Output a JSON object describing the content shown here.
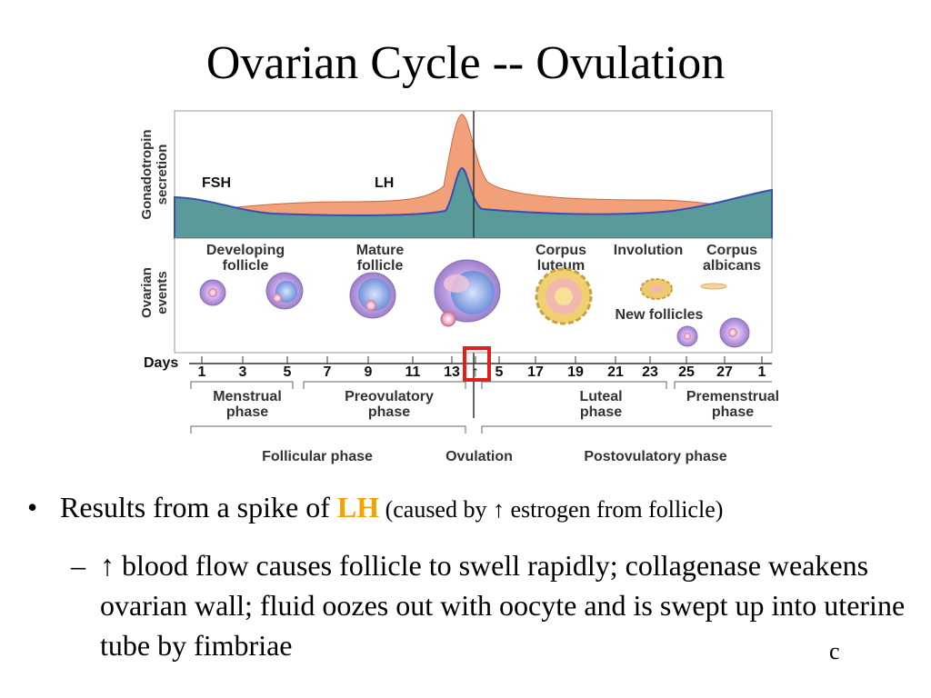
{
  "slide": {
    "title": "Ovarian Cycle -- Ovulation",
    "number": "c"
  },
  "diagram": {
    "y_labels": {
      "gonadotropin": [
        "Gonadotropin",
        "secretion"
      ],
      "ovarian": [
        "Ovarian",
        "events"
      ]
    },
    "hormones": {
      "fsh": "FSH",
      "lh": "LH"
    },
    "events": {
      "developing": [
        "Developing",
        "follicle"
      ],
      "mature": [
        "Mature",
        "follicle"
      ],
      "corpus_luteum": [
        "Corpus",
        "luteum"
      ],
      "involution": "Involution",
      "corpus_albicans": [
        "Corpus",
        "albicans"
      ],
      "new_follicles": "New follicles"
    },
    "days_label": "Days",
    "days": [
      "1",
      "3",
      "5",
      "7",
      "9",
      "11",
      "13",
      "↑",
      "5",
      "17",
      "19",
      "21",
      "23",
      "25",
      "27",
      "1"
    ],
    "phases": {
      "menstrual": [
        "Menstrual",
        "phase"
      ],
      "preovulatory": [
        "Preovulatory",
        "phase"
      ],
      "luteal": [
        "Luteal",
        "phase"
      ],
      "premenstrual": [
        "Premenstrual",
        "phase"
      ],
      "follicular": "Follicular phase",
      "ovulation": "Ovulation",
      "postovulatory": "Postovulatory phase"
    },
    "colors": {
      "lh": "#f2a07a",
      "fsh": "#5a9a9a",
      "highlight": "#e0201b",
      "follicle": "#c8a0e0",
      "corpus": "#f0d070"
    }
  },
  "bullets": {
    "main": {
      "prefix": "Results from a spike of ",
      "highlight": "LH",
      "note": " (caused by ↑ estrogen from follicle)"
    },
    "sub": {
      "dash": "–",
      "text": "↑ blood flow causes follicle to swell rapidly; collagenase weakens ovarian wall; fluid oozes out with oocyte and is swept up into uterine tube by fimbriae"
    }
  }
}
